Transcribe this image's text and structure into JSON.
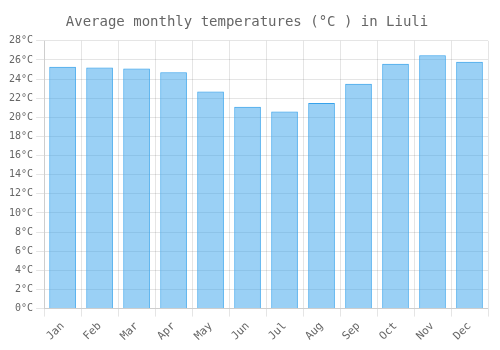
{
  "chart_data": {
    "type": "bar",
    "title": "Average monthly temperatures (°C ) in Liuli",
    "categories": [
      "Jan",
      "Feb",
      "Mar",
      "Apr",
      "May",
      "Jun",
      "Jul",
      "Aug",
      "Sep",
      "Oct",
      "Nov",
      "Dec"
    ],
    "values": [
      25.3,
      25.2,
      25.1,
      24.7,
      22.7,
      21.1,
      20.6,
      21.5,
      23.5,
      25.6,
      26.5,
      25.8
    ],
    "ylim": [
      0,
      28
    ],
    "yticks": [
      {
        "value": 0,
        "label": "0°C"
      },
      {
        "value": 2,
        "label": "2°C"
      },
      {
        "value": 4,
        "label": "4°C"
      },
      {
        "value": 6,
        "label": "6°C"
      },
      {
        "value": 8,
        "label": "8°C"
      },
      {
        "value": 10,
        "label": "10°C"
      },
      {
        "value": 12,
        "label": "12°C"
      },
      {
        "value": 14,
        "label": "14°C"
      },
      {
        "value": 16,
        "label": "16°C"
      },
      {
        "value": 18,
        "label": "18°C"
      },
      {
        "value": 20,
        "label": "20°C"
      },
      {
        "value": 22,
        "label": "22°C"
      },
      {
        "value": 24,
        "label": "24°C"
      },
      {
        "value": 26,
        "label": "26°C"
      },
      {
        "value": 28,
        "label": "28°C"
      }
    ],
    "grid": true
  }
}
